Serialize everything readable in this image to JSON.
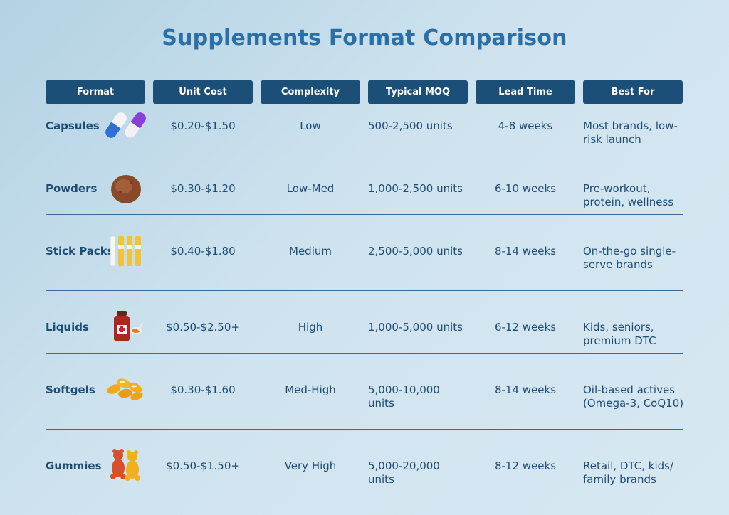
{
  "title": "Supplements Format Comparison",
  "headers": [
    "Format",
    "Unit Cost",
    "Complexity",
    "Typical MOQ",
    "Lead Time",
    "Best For"
  ],
  "rows": [
    {
      "format": "Capsules",
      "unit_cost": "$0.20-$1.50",
      "complexity": "Low",
      "moq": "500-2,500 units",
      "lead_time": "4-8 weeks",
      "best_for": "Most brands, low-risk launch",
      "icon": "capsule-icon"
    },
    {
      "format": "Powders",
      "unit_cost": "$0.30-$1.20",
      "complexity": "Low-Med",
      "moq": "1,000-2,500 units",
      "lead_time": "6-10 weeks",
      "best_for": "Pre-workout, protein, wellness",
      "icon": "powder-icon"
    },
    {
      "format": "Stick Packs",
      "unit_cost": "$0.40-$1.80",
      "complexity": "Medium",
      "moq": "2,500-5,000 units",
      "lead_time": "8-14 weeks",
      "best_for": "On-the-go single-serve brands",
      "icon": "stick-pack-icon"
    },
    {
      "format": "Liquids",
      "unit_cost": "$0.50-$2.50+",
      "complexity": "High",
      "moq": "1,000-5,000 units",
      "lead_time": "6-12 weeks",
      "best_for": "Kids, seniors, premium DTC",
      "icon": "liquid-bottle-icon"
    },
    {
      "format": "Softgels",
      "unit_cost": "$0.30-$1.60",
      "complexity": "Med-High",
      "moq": "5,000-10,000 units",
      "lead_time": "8-14 weeks",
      "best_for": "Oil-based actives (Omega-3, CoQ10)",
      "icon": "softgel-icon"
    },
    {
      "format": "Gummies",
      "unit_cost": "$0.50-$1.50+",
      "complexity": "Very High",
      "moq": "5,000-20,000 units",
      "lead_time": "8-12 weeks",
      "best_for": "Retail, DTC, kids/ family brands",
      "icon": "gummy-bear-icon"
    }
  ]
}
